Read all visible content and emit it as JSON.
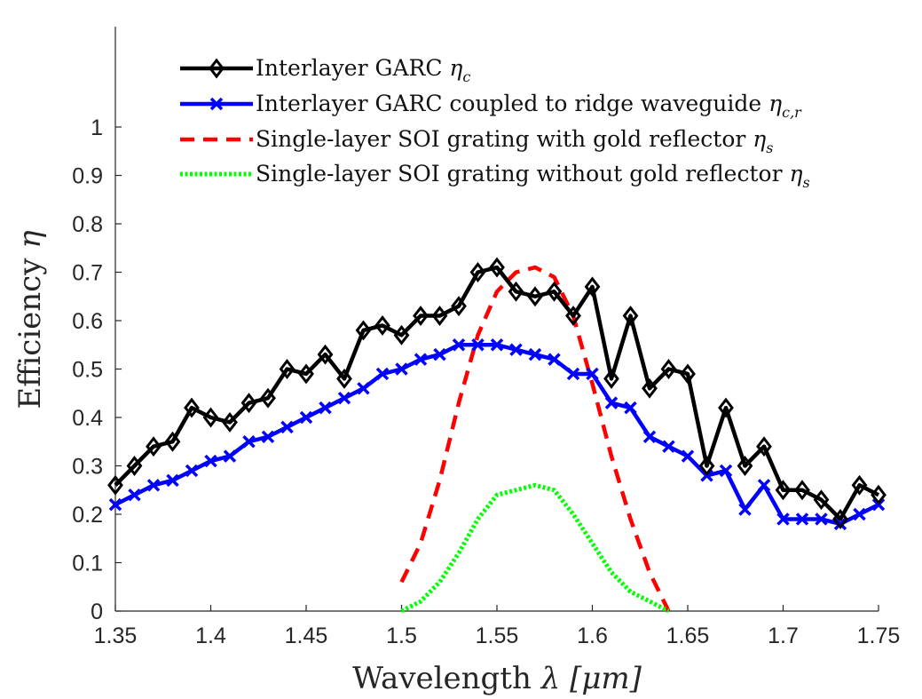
{
  "chart_data": {
    "type": "line",
    "xlabel": "Wavelength",
    "xlabel_symbol": "λ",
    "xlabel_unit": "[μm]",
    "ylabel": "Efficiency",
    "ylabel_symbol": "η",
    "xlim": [
      1.35,
      1.75
    ],
    "ylim": [
      0,
      1.0
    ],
    "xticks": [
      "1.35",
      "1.4",
      "1.45",
      "1.5",
      "1.55",
      "1.6",
      "1.65",
      "1.7",
      "1.75"
    ],
    "yticks": [
      "0",
      "0.1",
      "0.2",
      "0.3",
      "0.4",
      "0.5",
      "0.6",
      "0.7",
      "0.8",
      "0.9",
      "1"
    ],
    "grid": false,
    "legend_position": "top",
    "series": [
      {
        "name": "Interlayer GARC",
        "name_symbol": "η",
        "name_sub": "c",
        "color": "#000000",
        "line_style": "solid",
        "marker": "diamond",
        "x": [
          1.35,
          1.36,
          1.37,
          1.38,
          1.39,
          1.4,
          1.41,
          1.42,
          1.43,
          1.44,
          1.45,
          1.46,
          1.47,
          1.48,
          1.49,
          1.5,
          1.51,
          1.52,
          1.53,
          1.54,
          1.55,
          1.56,
          1.57,
          1.58,
          1.59,
          1.6,
          1.61,
          1.62,
          1.63,
          1.64,
          1.65,
          1.66,
          1.67,
          1.68,
          1.69,
          1.7,
          1.71,
          1.72,
          1.73,
          1.74,
          1.75
        ],
        "values": [
          0.26,
          0.3,
          0.34,
          0.35,
          0.42,
          0.4,
          0.39,
          0.43,
          0.44,
          0.5,
          0.49,
          0.53,
          0.48,
          0.58,
          0.59,
          0.57,
          0.61,
          0.61,
          0.63,
          0.7,
          0.71,
          0.66,
          0.65,
          0.66,
          0.61,
          0.67,
          0.48,
          0.61,
          0.46,
          0.5,
          0.49,
          0.3,
          0.42,
          0.3,
          0.34,
          0.25,
          0.25,
          0.23,
          0.19,
          0.26,
          0.24
        ]
      },
      {
        "name": "Interlayer GARC coupled to ridge waveguide",
        "name_symbol": "η",
        "name_sub": "c,r",
        "color": "#0000ff",
        "line_style": "solid",
        "marker": "x",
        "x": [
          1.35,
          1.36,
          1.37,
          1.38,
          1.39,
          1.4,
          1.41,
          1.42,
          1.43,
          1.44,
          1.45,
          1.46,
          1.47,
          1.48,
          1.49,
          1.5,
          1.51,
          1.52,
          1.53,
          1.54,
          1.55,
          1.56,
          1.57,
          1.58,
          1.59,
          1.6,
          1.61,
          1.62,
          1.63,
          1.64,
          1.65,
          1.66,
          1.67,
          1.68,
          1.69,
          1.7,
          1.71,
          1.72,
          1.73,
          1.74,
          1.75
        ],
        "values": [
          0.22,
          0.24,
          0.26,
          0.27,
          0.29,
          0.31,
          0.32,
          0.35,
          0.36,
          0.38,
          0.4,
          0.42,
          0.44,
          0.46,
          0.49,
          0.5,
          0.52,
          0.53,
          0.55,
          0.55,
          0.55,
          0.54,
          0.53,
          0.52,
          0.49,
          0.49,
          0.43,
          0.42,
          0.36,
          0.34,
          0.32,
          0.28,
          0.29,
          0.21,
          0.26,
          0.19,
          0.19,
          0.19,
          0.18,
          0.2,
          0.22
        ]
      },
      {
        "name": "Single-layer SOI grating with gold reflector",
        "name_symbol": "η",
        "name_sub": "s",
        "color": "#ff0000",
        "line_style": "dashed",
        "marker": "none",
        "x": [
          1.5,
          1.51,
          1.52,
          1.53,
          1.54,
          1.55,
          1.56,
          1.57,
          1.58,
          1.59,
          1.6,
          1.61,
          1.62,
          1.63,
          1.64
        ],
        "values": [
          0.06,
          0.14,
          0.27,
          0.43,
          0.57,
          0.66,
          0.7,
          0.71,
          0.69,
          0.61,
          0.47,
          0.32,
          0.19,
          0.08,
          0.0
        ]
      },
      {
        "name": "Single-layer SOI grating without gold reflector",
        "name_symbol": "η",
        "name_sub": "s",
        "color": "#00ff00",
        "line_style": "dotted",
        "marker": "none",
        "x": [
          1.5,
          1.51,
          1.52,
          1.53,
          1.54,
          1.55,
          1.56,
          1.57,
          1.58,
          1.59,
          1.6,
          1.61,
          1.62,
          1.63,
          1.64
        ],
        "values": [
          0.0,
          0.02,
          0.06,
          0.12,
          0.19,
          0.24,
          0.25,
          0.26,
          0.25,
          0.2,
          0.14,
          0.08,
          0.04,
          0.02,
          0.0
        ]
      }
    ]
  }
}
